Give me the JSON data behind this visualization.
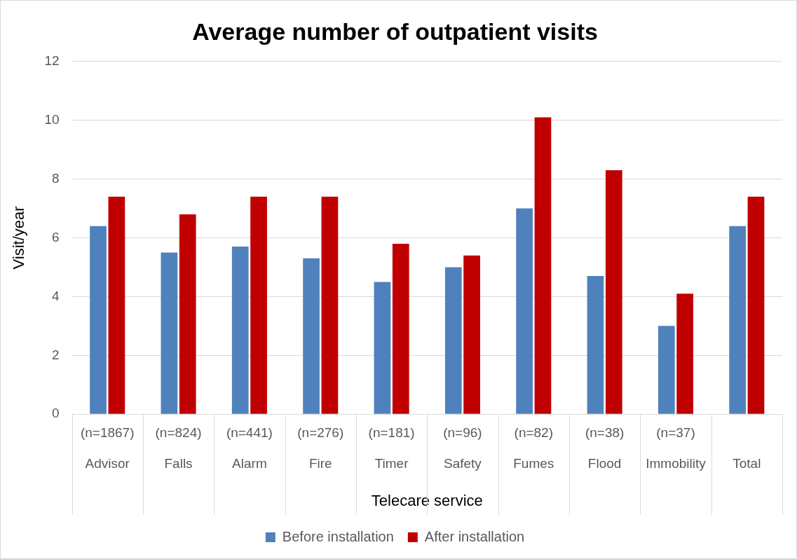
{
  "chart_data": {
    "type": "bar",
    "title": "Average number of outpatient visits",
    "xlabel": "Telecare service",
    "ylabel": "Visit/year",
    "categories": [
      "(n=1867)\nAdvisor",
      "(n=824)\nFalls",
      "(n=441)\nAlarm",
      "(n=276)\nFire",
      "(n=181)\nTimer",
      "(n=96)\nSafety",
      "(n=82)\nFumes",
      "(n=38)\nFlood",
      "(n=37)\nImmobility",
      "\nTotal"
    ],
    "series": [
      {
        "name": "Before installation",
        "color": "#4f81bd",
        "values": [
          6.4,
          5.5,
          5.7,
          5.3,
          4.5,
          5.0,
          7.0,
          4.7,
          3.0,
          6.4
        ]
      },
      {
        "name": "After installation",
        "color": "#c00000",
        "values": [
          7.4,
          6.8,
          7.4,
          7.4,
          5.8,
          5.4,
          10.1,
          8.3,
          4.1,
          7.4
        ]
      }
    ],
    "ylim": [
      0,
      12
    ],
    "yticks": [
      0,
      2,
      4,
      6,
      8,
      10,
      12
    ],
    "grid": "y",
    "legend": "bottom"
  }
}
